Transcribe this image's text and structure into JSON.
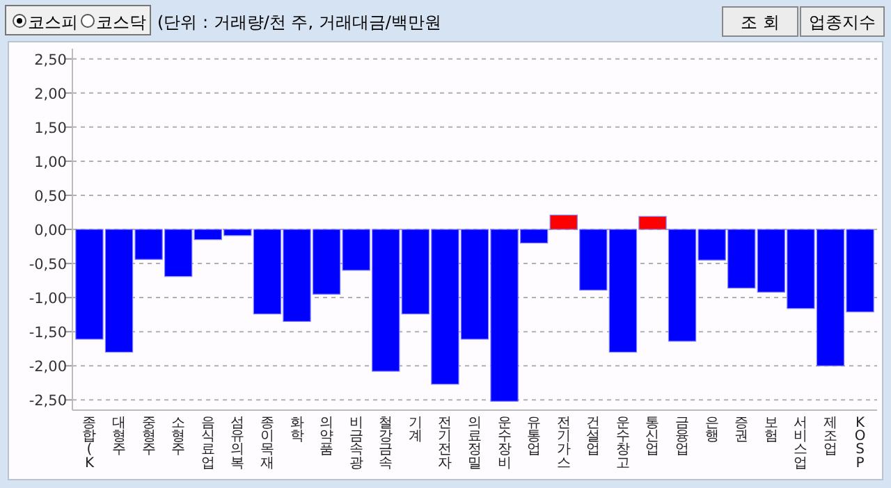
{
  "chart_data": {
    "type": "bar",
    "categories": [
      "종합(K",
      "대형주",
      "중형주",
      "소형주",
      "음식료업",
      "섬유의복",
      "종이목재",
      "화학",
      "의약품",
      "비금속광",
      "철강금속",
      "기계",
      "전기전자",
      "의료정밀",
      "운수장비",
      "유통업",
      "전기가스",
      "건설업",
      "운수창고",
      "통신업",
      "금융업",
      "은행",
      "증권",
      "보험",
      "서비스업",
      "제조업",
      "KOSP"
    ],
    "values": [
      -1.61,
      -1.8,
      -0.44,
      -0.69,
      -0.15,
      -0.09,
      -1.24,
      -1.35,
      -0.95,
      -0.6,
      -2.08,
      -1.24,
      -2.27,
      -1.61,
      -2.52,
      -0.2,
      0.21,
      -0.89,
      -1.8,
      0.19,
      -1.64,
      -0.45,
      -0.86,
      -0.92,
      -1.16,
      -2.0,
      -1.21
    ],
    "colors": [
      "#0000ff",
      "#0000ff",
      "#0000ff",
      "#0000ff",
      "#0000ff",
      "#0000ff",
      "#0000ff",
      "#0000ff",
      "#0000ff",
      "#0000ff",
      "#0000ff",
      "#0000ff",
      "#0000ff",
      "#0000ff",
      "#0000ff",
      "#0000ff",
      "#ff0000",
      "#0000ff",
      "#0000ff",
      "#ff0000",
      "#0000ff",
      "#0000ff",
      "#0000ff",
      "#0000ff",
      "#0000ff",
      "#0000ff",
      "#0000ff"
    ],
    "ylim": [
      -2.65,
      2.65
    ],
    "yticks": [
      {
        "value": -2.5,
        "label": "-2,50"
      },
      {
        "value": -2,
        "label": "-2,00"
      },
      {
        "value": -1.5,
        "label": "-1,50"
      },
      {
        "value": -1,
        "label": "-1,00"
      },
      {
        "value": -0.5,
        "label": "-0,50"
      },
      {
        "value": 0,
        "label": "0,00"
      },
      {
        "value": 0.5,
        "label": "0,50"
      },
      {
        "value": 1,
        "label": "1,00"
      },
      {
        "value": 1.5,
        "label": "1,50"
      },
      {
        "value": 2,
        "label": "2,00"
      },
      {
        "value": 2.5,
        "label": "2,50"
      }
    ],
    "grid": "y",
    "annotations": [
      "코스피",
      "코스닥",
      "(단위 : 거래량/천 주, 거래대금/백만원",
      "조  회",
      "업종지수"
    ]
  }
}
